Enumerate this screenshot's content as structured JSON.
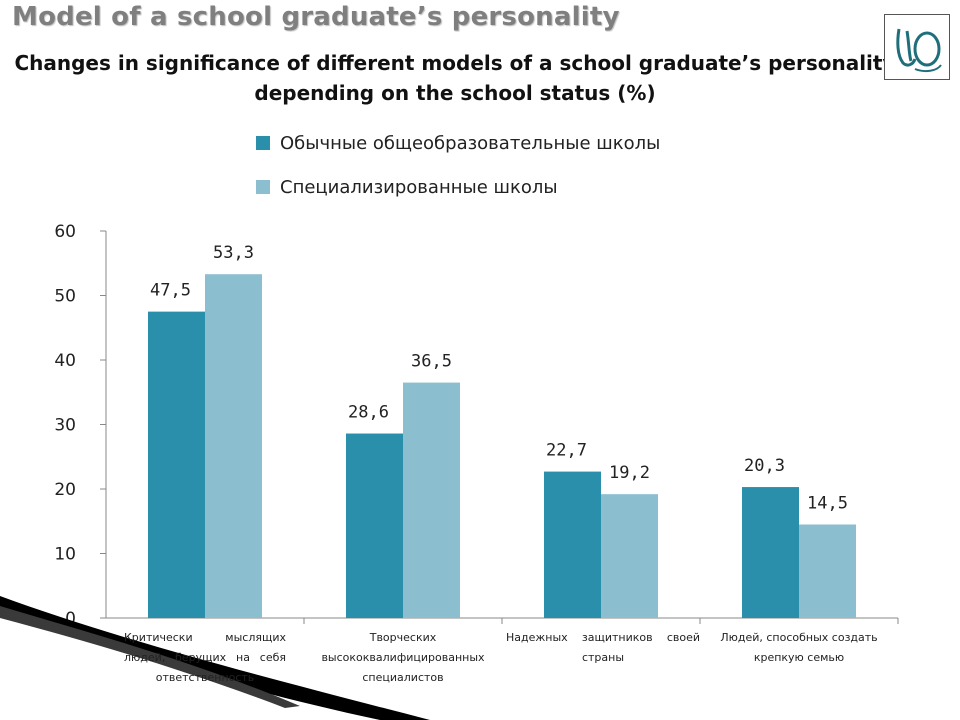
{
  "slide": {
    "title": "Model of a school graduate’s personality",
    "subtitle": "Changes in significance of different models of a school graduate’s personality depending on the school status (%)"
  },
  "colors": {
    "series1": "#2a8faa",
    "series2": "#8bbfd0",
    "title": "#7f7f7f",
    "axis": "#888888",
    "logo": "#1f6f7a",
    "swoosh": "#000000"
  },
  "chart_data": {
    "type": "bar",
    "categories": [
      "Критически мыслящих людей, берущих на себя ответственность",
      "Творческих высококвалифицированных специалистов",
      "Надежных защитников своей страны",
      "Людей, способных создать крепкую семью"
    ],
    "series": [
      {
        "name": "Обычные общеобразовательные школы",
        "values": [
          47.5,
          28.6,
          22.7,
          20.3
        ],
        "labels": [
          "47,5",
          "28,6",
          "22,7",
          "20,3"
        ]
      },
      {
        "name": "Специализированные школы",
        "values": [
          53.3,
          36.5,
          19.2,
          14.5
        ],
        "labels": [
          "53,3",
          "36,5",
          "19,2",
          "14,5"
        ]
      }
    ],
    "yticks": [
      0,
      10,
      20,
      30,
      40,
      50,
      60
    ],
    "ylim": [
      0,
      60
    ],
    "title": "Changes in significance of different models of a school graduate’s personality depending on the school status (%)",
    "xlabel": "",
    "ylabel": "",
    "legend_position": "top",
    "grid": false
  }
}
